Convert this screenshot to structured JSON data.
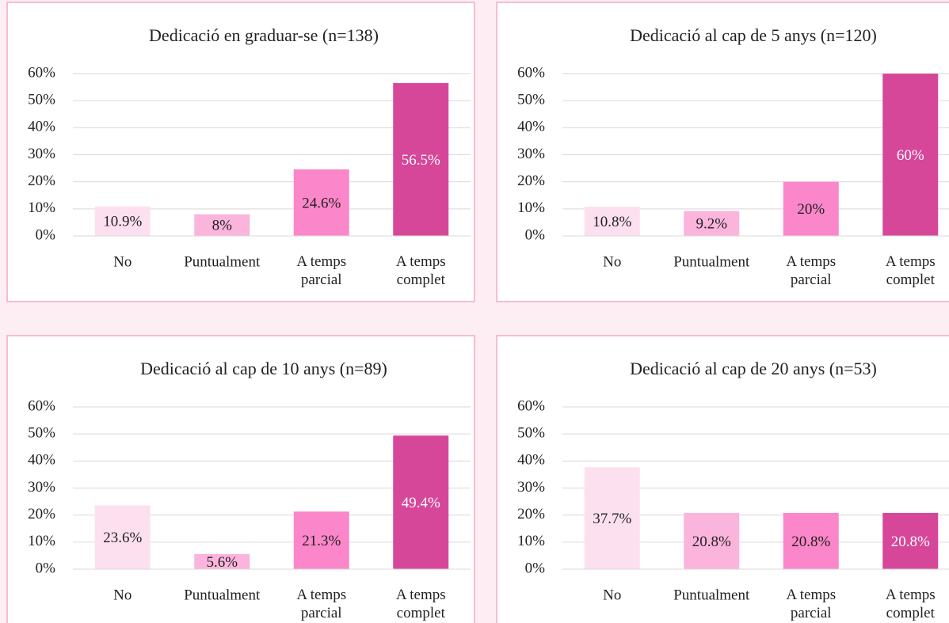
{
  "chart_data": [
    {
      "type": "bar",
      "title": "Dedicació en graduar-se (n=138)",
      "categories": [
        "No",
        "Puntualment",
        "A temps parcial",
        "A temps complet"
      ],
      "values": [
        10.9,
        8,
        24.6,
        56.5
      ],
      "value_labels": [
        "10.9%",
        "8%",
        "24.6%",
        "56.5%"
      ],
      "colors": [
        "#fde0ef",
        "#fbb4dc",
        "#fb86c9",
        "#d6479a"
      ],
      "ylim": [
        0,
        60
      ],
      "yticks": [
        {
          "value": 0,
          "label": "0%"
        },
        {
          "value": 10,
          "label": "10%"
        },
        {
          "value": 20,
          "label": "20%"
        },
        {
          "value": 30,
          "label": "30%"
        },
        {
          "value": 40,
          "label": "40%"
        },
        {
          "value": 50,
          "label": "50%"
        },
        {
          "value": 60,
          "label": "60%"
        }
      ],
      "grid": true
    },
    {
      "type": "bar",
      "title": "Dedicació al cap de 5 anys (n=120)",
      "categories": [
        "No",
        "Puntualment",
        "A temps parcial",
        "A temps complet"
      ],
      "values": [
        10.8,
        9.2,
        20,
        60
      ],
      "value_labels": [
        "10.8%",
        "9.2%",
        "20%",
        "60%"
      ],
      "colors": [
        "#fde0ef",
        "#fbb4dc",
        "#fb86c9",
        "#d6479a"
      ],
      "ylim": [
        0,
        60
      ],
      "yticks": [
        {
          "value": 0,
          "label": "0%"
        },
        {
          "value": 10,
          "label": "10%"
        },
        {
          "value": 20,
          "label": "20%"
        },
        {
          "value": 30,
          "label": "30%"
        },
        {
          "value": 40,
          "label": "40%"
        },
        {
          "value": 50,
          "label": "50%"
        },
        {
          "value": 60,
          "label": "60%"
        }
      ],
      "grid": true
    },
    {
      "type": "bar",
      "title": "Dedicació al cap de 10 anys (n=89)",
      "categories": [
        "No",
        "Puntualment",
        "A temps parcial",
        "A temps complet"
      ],
      "values": [
        23.6,
        5.6,
        21.3,
        49.4
      ],
      "value_labels": [
        "23.6%",
        "5.6%",
        "21.3%",
        "49.4%"
      ],
      "colors": [
        "#fde0ef",
        "#fbb4dc",
        "#fb86c9",
        "#d6479a"
      ],
      "ylim": [
        0,
        60
      ],
      "yticks": [
        {
          "value": 0,
          "label": "0%"
        },
        {
          "value": 10,
          "label": "10%"
        },
        {
          "value": 20,
          "label": "20%"
        },
        {
          "value": 30,
          "label": "30%"
        },
        {
          "value": 40,
          "label": "40%"
        },
        {
          "value": 50,
          "label": "50%"
        },
        {
          "value": 60,
          "label": "60%"
        }
      ],
      "grid": true
    },
    {
      "type": "bar",
      "title": "Dedicació al cap de 20 anys (n=53)",
      "categories": [
        "No",
        "Puntualment",
        "A temps parcial",
        "A temps complet"
      ],
      "values": [
        37.7,
        20.8,
        20.8,
        20.8
      ],
      "value_labels": [
        "37.7%",
        "20.8%",
        "20.8%",
        "20.8%"
      ],
      "colors": [
        "#fde0ef",
        "#fbb4dc",
        "#fb86c9",
        "#d6479a"
      ],
      "ylim": [
        0,
        60
      ],
      "yticks": [
        {
          "value": 0,
          "label": "0%"
        },
        {
          "value": 10,
          "label": "10%"
        },
        {
          "value": 20,
          "label": "20%"
        },
        {
          "value": 30,
          "label": "30%"
        },
        {
          "value": 40,
          "label": "40%"
        },
        {
          "value": 50,
          "label": "50%"
        },
        {
          "value": 60,
          "label": "60%"
        }
      ],
      "grid": true
    }
  ]
}
